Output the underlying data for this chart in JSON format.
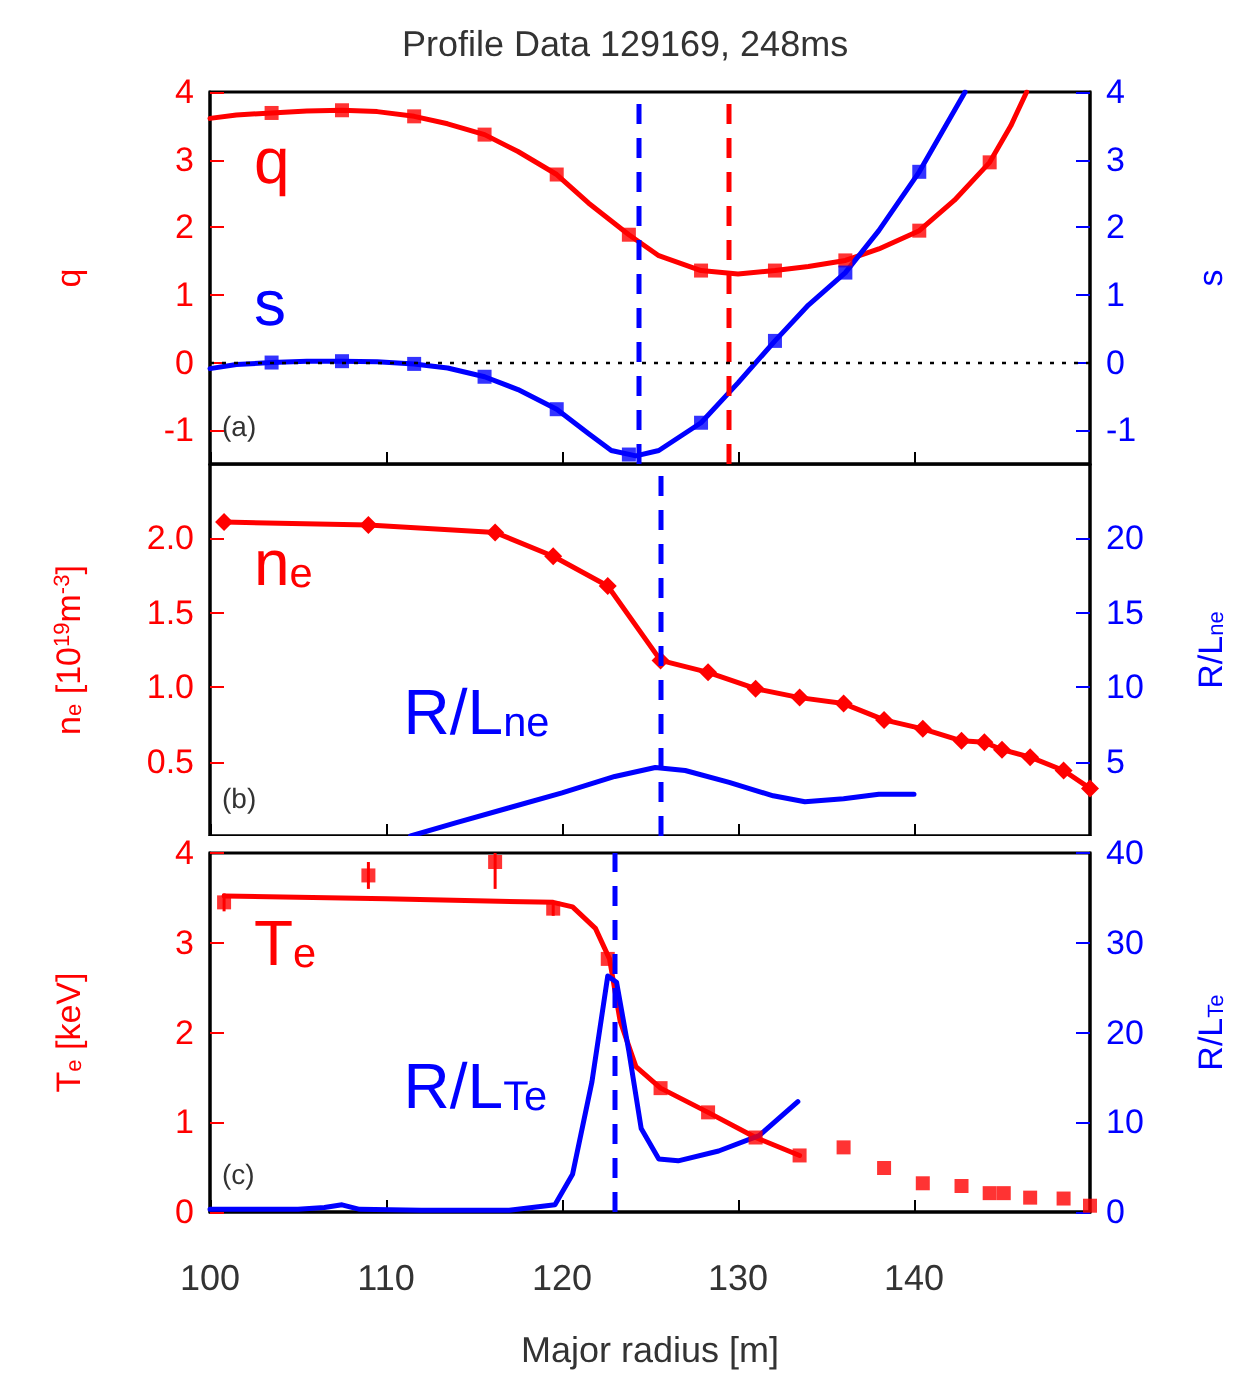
{
  "chart_data": [
    {
      "type": "line",
      "title": "Profile Data 129169, 248ms",
      "ylabel": "q",
      "y2label": "s",
      "annotations": [
        "(a)"
      ],
      "xlim": [
        100,
        150
      ],
      "xticks": [
        100,
        110,
        120,
        130,
        140
      ],
      "ylim": [
        -1.5,
        4
      ],
      "yticks": [
        -1,
        0,
        1,
        2,
        3,
        4
      ],
      "y2lim": [
        -1.5,
        4
      ],
      "y2ticks": [
        -1,
        0,
        1,
        2,
        3,
        4
      ],
      "tick_labels": "y",
      "ref_lines": [
        {
          "axis": "x",
          "value": 124.3,
          "color": "#0000ff",
          "line_style": "dashed"
        },
        {
          "axis": "x",
          "value": 129.5,
          "color": "#ff0000",
          "line_style": "dashed"
        },
        {
          "axis": "y",
          "value": 0,
          "color": "#000000",
          "line_style": "dotted"
        }
      ],
      "series": [
        {
          "name": "q",
          "type": "line",
          "color": "#ff0000",
          "marker": "none",
          "x": [
            100,
            101.5,
            103.5,
            105.5,
            107.5,
            109.5,
            111.6,
            113.5,
            115.6,
            117.5,
            119.7,
            121.5,
            123.8,
            125.5,
            127.9,
            130,
            132.1,
            134,
            136.1,
            138,
            140.3,
            142.3,
            144.3,
            145.5,
            146.4
          ],
          "values": [
            3.61,
            3.66,
            3.69,
            3.72,
            3.73,
            3.71,
            3.64,
            3.53,
            3.37,
            3.12,
            2.78,
            2.36,
            1.89,
            1.58,
            1.36,
            1.31,
            1.36,
            1.42,
            1.51,
            1.68,
            1.95,
            2.4,
            2.96,
            3.5,
            4.0
          ]
        },
        {
          "type": "scatter",
          "color": "#ff0000",
          "marker": "square",
          "x": [
            103.5,
            107.5,
            111.6,
            115.6,
            119.7,
            123.8,
            127.9,
            132.1,
            136.1,
            140.3,
            144.3
          ],
          "values": [
            3.69,
            3.73,
            3.64,
            3.37,
            2.78,
            1.89,
            1.36,
            1.36,
            1.51,
            1.95,
            2.96
          ]
        },
        {
          "name": "s",
          "type": "line",
          "axis": "y2",
          "color": "#0000ff",
          "marker": "none",
          "x": [
            100,
            101.5,
            103.5,
            105.5,
            107.5,
            109.5,
            111.6,
            113.5,
            115.6,
            117.5,
            119.7,
            121.5,
            122.8,
            124.2,
            125.5,
            127.9,
            130,
            132.1,
            134,
            136.1,
            138,
            140.3,
            142.9
          ],
          "values": [
            -0.09,
            -0.03,
            0,
            0.02,
            0.02,
            0.01,
            -0.02,
            -0.08,
            -0.21,
            -0.4,
            -0.69,
            -1.05,
            -1.3,
            -1.38,
            -1.3,
            -0.89,
            -0.3,
            0.32,
            0.85,
            1.33,
            1.95,
            2.82,
            4.0
          ]
        },
        {
          "type": "scatter",
          "axis": "y2",
          "color": "#0000ff",
          "marker": "square",
          "x": [
            103.5,
            107.5,
            111.6,
            115.6,
            119.7,
            123.8,
            127.9,
            132.1,
            136.1,
            140.3
          ],
          "values": [
            0,
            0.02,
            -0.02,
            -0.21,
            -0.69,
            -1.36,
            -0.89,
            0.32,
            1.33,
            2.82
          ]
        }
      ]
    },
    {
      "type": "line",
      "ylabel": "n$_{e}$ [10$^{19}$m$^{-3}$]",
      "y2label": "R/L$_{ne}$",
      "annotations": [
        "(b)"
      ],
      "xlim": [
        100,
        150
      ],
      "xticks": [
        100,
        110,
        120,
        130,
        140
      ],
      "ylim": [
        0,
        2.5
      ],
      "yticks": [
        0.5,
        {
          "value": 1,
          "label": "1.0"
        },
        1.5,
        {
          "value": 2,
          "label": "2.0"
        }
      ],
      "y2lim": [
        0,
        25
      ],
      "y2ticks": [
        5,
        10,
        15,
        20
      ],
      "tick_labels": "y",
      "ref_lines": [
        {
          "axis": "x",
          "value": 125.6,
          "color": "#0000ff",
          "line_style": "dashed"
        }
      ],
      "series": [
        {
          "name": "n$_{e}$",
          "type": "line",
          "color": "#ff0000",
          "marker": "diamond",
          "x": [
            100.8,
            109.0,
            116.2,
            119.5,
            122.6,
            125.6,
            128.3,
            131.0,
            133.5,
            136.0,
            138.3,
            140.5,
            142.7,
            144.0,
            145.0,
            146.6,
            148.5,
            150
          ],
          "values": [
            2.11,
            2.09,
            2.04,
            1.88,
            1.68,
            1.18,
            1.1,
            0.99,
            0.93,
            0.89,
            0.78,
            0.72,
            0.64,
            0.63,
            0.58,
            0.53,
            0.44,
            0.32
          ]
        },
        {
          "name": "R/L$_{ne}$",
          "type": "line",
          "axis": "y2",
          "color": "#0000ff",
          "marker": "none",
          "x": [
            111.4,
            114,
            117,
            120,
            123,
            125.3,
            127,
            129.5,
            132,
            133.8,
            136,
            138,
            140
          ],
          "values": [
            0,
            0.9,
            1.9,
            2.9,
            4.0,
            4.6,
            4.4,
            3.6,
            2.7,
            2.3,
            2.5,
            2.8,
            2.8
          ]
        }
      ]
    },
    {
      "type": "line",
      "xlabel": "Major radius [m]",
      "ylabel": "T$_{e}$ [keV]",
      "y2label": "R/L$_{Te}$",
      "annotations": [
        "(c)"
      ],
      "xlim": [
        100,
        150
      ],
      "xticks": [
        100,
        110,
        120,
        130,
        140
      ],
      "ylim": [
        0,
        4
      ],
      "yticks": [
        0,
        1,
        2,
        3,
        4
      ],
      "y2lim": [
        0,
        40
      ],
      "y2ticks": [
        0,
        10,
        20,
        30,
        40
      ],
      "ref_lines": [
        {
          "axis": "x",
          "value": 123.0,
          "color": "#0000ff",
          "line_style": "dashed"
        }
      ],
      "series": [
        {
          "name": "T$_{e}$",
          "type": "line",
          "color": "#ff0000",
          "marker": "none",
          "x": [
            100.8,
            110,
            119.5,
            120.6,
            121.9,
            122.7,
            123.3,
            124.2,
            125.6,
            128.3,
            131,
            133.5
          ],
          "values": [
            3.52,
            3.49,
            3.45,
            3.4,
            3.16,
            2.82,
            2.13,
            1.62,
            1.38,
            1.11,
            0.83,
            0.63
          ]
        },
        {
          "type": "scatter",
          "color": "#ff0000",
          "marker": "square",
          "x": [
            100.8,
            109,
            116.2,
            119.5,
            122.6,
            125.6,
            128.3,
            131,
            133.5,
            136,
            138.3,
            140.5,
            142.7,
            144.3,
            145.1,
            146.6,
            148.5,
            150
          ],
          "values": [
            3.45,
            3.75,
            3.9,
            3.38,
            2.82,
            1.38,
            1.11,
            0.83,
            0.63,
            0.72,
            0.49,
            0.32,
            0.29,
            0.21,
            0.21,
            0.16,
            0.15,
            0.07
          ],
          "errors": [
            0.1,
            0.15,
            [
              3.6,
              4.0
            ],
            0.08,
            null,
            null,
            null,
            null,
            null,
            null,
            null,
            null,
            null,
            null,
            null,
            null,
            null,
            null
          ]
        },
        {
          "name": "R/L$_{Te}$",
          "type": "line",
          "axis": "y2",
          "color": "#0000ff",
          "marker": "none",
          "x": [
            100,
            105,
            106.5,
            107.5,
            108.5,
            112,
            117,
            119.6,
            120.6,
            121.7,
            122.6,
            123.1,
            123.8,
            124.5,
            125.5,
            126.6,
            128.9,
            131.2,
            133.4
          ],
          "values": [
            0.3,
            0.3,
            0.5,
            0.8,
            0.3,
            0.2,
            0.2,
            0.8,
            4.2,
            14.5,
            26.3,
            25.6,
            17.9,
            9.3,
            5.9,
            5.7,
            6.8,
            8.5,
            12.3
          ]
        }
      ]
    }
  ]
}
